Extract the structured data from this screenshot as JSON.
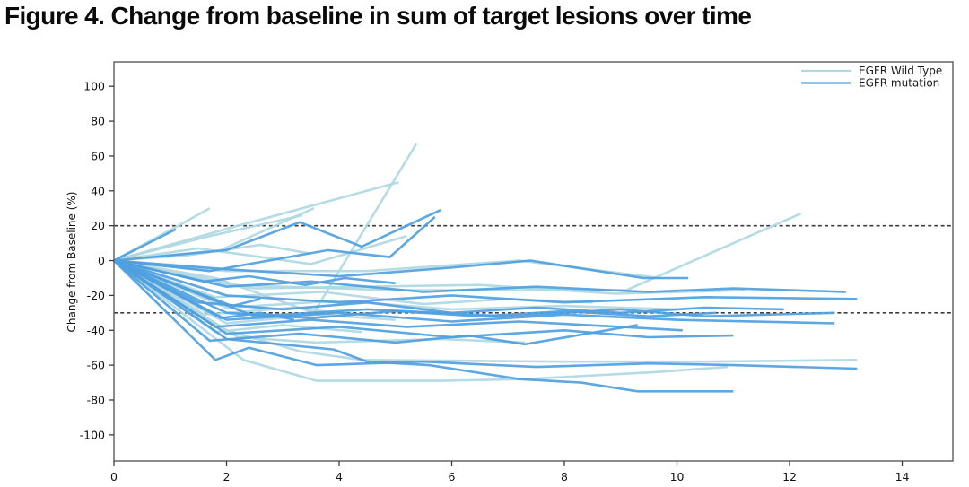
{
  "title": "Figure 4. Change from baseline in sum of target lesions over time",
  "colors": {
    "wild_type": "#afd8e3",
    "mutation": "#4f9fe0",
    "axis_box": "#5a5a5a",
    "tick": "#3c3c3c",
    "tick_label": "#111111",
    "reference_line": "#3d3d3d",
    "background": "#ffffff"
  },
  "chart_data": {
    "type": "line",
    "title": "Figure 4. Change from baseline in sum of target lesions over time",
    "xlabel": "",
    "ylabel": "Change from Baseline (%)",
    "x_ticks": [
      0,
      2,
      4,
      6,
      8,
      10,
      12,
      14
    ],
    "y_ticks": [
      -100,
      -80,
      -60,
      -40,
      -20,
      0,
      20,
      40,
      60,
      80,
      100
    ],
    "xlim": [
      0,
      14.9
    ],
    "ylim": [
      -115,
      114
    ],
    "grid": false,
    "reference_lines": [
      {
        "y": 20,
        "style": "dashed"
      },
      {
        "y": -30,
        "style": "dashed"
      }
    ],
    "legend": {
      "position": "top-right",
      "entries": [
        {
          "label": "EGFR Wild Type",
          "group": "wild",
          "color": "#afd8e3"
        },
        {
          "label": "EGFR mutation",
          "group": "mutation",
          "color": "#4f9fe0"
        }
      ]
    },
    "groups": {
      "wild": "#afd8e3",
      "mutation": "#4f9fe0"
    },
    "series": [
      {
        "name": "wt-01",
        "group": "wild",
        "points": [
          [
            0,
            0
          ],
          [
            1.2,
            21
          ],
          [
            1.7,
            30
          ]
        ]
      },
      {
        "name": "wt-02",
        "group": "wild",
        "points": [
          [
            0,
            0
          ],
          [
            1.7,
            14
          ],
          [
            3.35,
            26
          ]
        ]
      },
      {
        "name": "wt-03",
        "group": "wild",
        "points": [
          [
            0,
            0
          ],
          [
            1.9,
            6
          ],
          [
            3.55,
            30
          ]
        ]
      },
      {
        "name": "wt-04",
        "group": "wild",
        "points": [
          [
            0,
            0
          ],
          [
            2.2,
            20
          ],
          [
            5.06,
            45
          ]
        ]
      },
      {
        "name": "wt-05",
        "group": "wild",
        "points": [
          [
            0,
            0
          ],
          [
            1.8,
            -10
          ],
          [
            3.55,
            -30
          ],
          [
            5.37,
            67
          ]
        ]
      },
      {
        "name": "wt-06",
        "group": "wild",
        "points": [
          [
            0,
            0
          ],
          [
            1.5,
            7
          ],
          [
            3.5,
            -2
          ],
          [
            5.2,
            14
          ]
        ]
      },
      {
        "name": "wt-07",
        "group": "wild",
        "points": [
          [
            0,
            0
          ],
          [
            2,
            -6
          ],
          [
            4.5,
            -6
          ],
          [
            7.2,
            0
          ],
          [
            9.7,
            -10
          ]
        ]
      },
      {
        "name": "wt-08",
        "group": "wild",
        "points": [
          [
            0,
            0
          ],
          [
            2,
            -14
          ],
          [
            5,
            -17
          ],
          [
            9.1,
            -17
          ],
          [
            12.2,
            27
          ]
        ]
      },
      {
        "name": "wt-09",
        "group": "wild",
        "points": [
          [
            0,
            0
          ],
          [
            2.5,
            -16
          ],
          [
            6.5,
            -14
          ],
          [
            8.9,
            -19
          ],
          [
            11.2,
            -17
          ]
        ]
      },
      {
        "name": "wt-10",
        "group": "wild",
        "points": [
          [
            0,
            0
          ],
          [
            1.8,
            -21
          ],
          [
            3.7,
            -18
          ],
          [
            5.5,
            -25
          ],
          [
            7,
            -22
          ],
          [
            8.5,
            -24
          ]
        ]
      },
      {
        "name": "wt-11",
        "group": "wild",
        "points": [
          [
            0,
            0
          ],
          [
            2,
            -27
          ],
          [
            4,
            -23
          ],
          [
            6,
            -28
          ],
          [
            8,
            -26
          ],
          [
            10,
            -28
          ]
        ]
      },
      {
        "name": "wt-12",
        "group": "wild",
        "points": [
          [
            0,
            0
          ],
          [
            1.6,
            -31
          ],
          [
            3.2,
            -27
          ],
          [
            4.2,
            -31
          ]
        ]
      },
      {
        "name": "wt-13",
        "group": "wild",
        "points": [
          [
            0,
            0
          ],
          [
            2,
            -36
          ],
          [
            3.6,
            -31
          ],
          [
            5,
            -34
          ]
        ]
      },
      {
        "name": "wt-14",
        "group": "wild",
        "points": [
          [
            0,
            0
          ],
          [
            1.8,
            -41
          ],
          [
            3,
            -37
          ],
          [
            4.4,
            -41
          ]
        ]
      },
      {
        "name": "wt-15",
        "group": "wild",
        "points": [
          [
            0,
            0
          ],
          [
            2.2,
            -44
          ],
          [
            3.6,
            -47
          ],
          [
            5.8,
            -45
          ],
          [
            7.3,
            -47
          ]
        ]
      },
      {
        "name": "wt-16",
        "group": "wild",
        "points": [
          [
            0,
            0
          ],
          [
            2,
            -40
          ],
          [
            3.3,
            -52
          ],
          [
            4.4,
            -57
          ],
          [
            8,
            -58
          ],
          [
            10.5,
            -58
          ],
          [
            13.2,
            -57
          ]
        ]
      },
      {
        "name": "wt-17",
        "group": "wild",
        "points": [
          [
            0,
            0
          ],
          [
            2.3,
            -57
          ],
          [
            3.6,
            -69
          ],
          [
            5.8,
            -69
          ],
          [
            7.3,
            -68
          ],
          [
            9.6,
            -64
          ],
          [
            10.9,
            -61
          ]
        ]
      },
      {
        "name": "wt-18",
        "group": "wild",
        "points": [
          [
            0,
            0
          ],
          [
            1.3,
            3
          ],
          [
            2.6,
            9
          ],
          [
            3.5,
            4
          ]
        ]
      },
      {
        "name": "mut-01",
        "group": "mutation",
        "points": [
          [
            0,
            0
          ],
          [
            1.1,
            18
          ]
        ]
      },
      {
        "name": "mut-02",
        "group": "mutation",
        "points": [
          [
            0,
            0
          ],
          [
            2,
            6
          ],
          [
            3.3,
            22
          ],
          [
            4.4,
            8
          ],
          [
            5.8,
            29
          ]
        ]
      },
      {
        "name": "mut-03",
        "group": "mutation",
        "points": [
          [
            0,
            0
          ],
          [
            1.7,
            -6
          ],
          [
            3.8,
            6
          ],
          [
            4.9,
            2
          ],
          [
            5.7,
            25
          ]
        ]
      },
      {
        "name": "mut-04",
        "group": "mutation",
        "points": [
          [
            0,
            0
          ],
          [
            2,
            -5
          ],
          [
            4,
            -9
          ],
          [
            6,
            -4
          ],
          [
            7.4,
            0
          ],
          [
            9.4,
            -10
          ],
          [
            10.2,
            -10
          ]
        ]
      },
      {
        "name": "mut-05",
        "group": "mutation",
        "points": [
          [
            0,
            0
          ],
          [
            1.6,
            -12
          ],
          [
            2.4,
            -9
          ],
          [
            3.4,
            -14
          ],
          [
            4.1,
            -10
          ],
          [
            5,
            -13
          ]
        ]
      },
      {
        "name": "mut-06",
        "group": "mutation",
        "points": [
          [
            0,
            0
          ],
          [
            2,
            -15
          ],
          [
            3.5,
            -12
          ],
          [
            5.5,
            -18
          ],
          [
            7.5,
            -15
          ],
          [
            9.5,
            -18
          ],
          [
            11,
            -16
          ],
          [
            13,
            -18
          ]
        ]
      },
      {
        "name": "mut-07",
        "group": "mutation",
        "points": [
          [
            0,
            0
          ],
          [
            2,
            -20
          ],
          [
            4,
            -24
          ],
          [
            6,
            -20
          ],
          [
            8,
            -24
          ],
          [
            10.5,
            -21
          ],
          [
            13.2,
            -22
          ]
        ]
      },
      {
        "name": "mut-08",
        "group": "mutation",
        "points": [
          [
            0,
            0
          ],
          [
            1.5,
            -24
          ],
          [
            3,
            -28
          ],
          [
            4.5,
            -24
          ],
          [
            6,
            -30
          ],
          [
            7.5,
            -27
          ],
          [
            9,
            -30
          ],
          [
            10.5,
            -27
          ],
          [
            11.9,
            -28
          ]
        ]
      },
      {
        "name": "mut-09",
        "group": "mutation",
        "points": [
          [
            0,
            0
          ],
          [
            2,
            -30
          ],
          [
            3.5,
            -33
          ],
          [
            5,
            -29
          ],
          [
            6.5,
            -32
          ],
          [
            8,
            -29
          ],
          [
            9.5,
            -32
          ],
          [
            10.7,
            -30
          ]
        ]
      },
      {
        "name": "mut-10",
        "group": "mutation",
        "points": [
          [
            0,
            0
          ],
          [
            2.5,
            -32
          ],
          [
            4.5,
            -28
          ],
          [
            7,
            -32
          ],
          [
            9,
            -28
          ],
          [
            10.5,
            -32
          ],
          [
            12.8,
            -30
          ]
        ]
      },
      {
        "name": "mut-11",
        "group": "mutation",
        "points": [
          [
            0,
            0
          ],
          [
            2,
            -34
          ],
          [
            4,
            -30
          ],
          [
            6,
            -35
          ],
          [
            8,
            -31
          ],
          [
            10,
            -34
          ],
          [
            12.8,
            -36
          ]
        ]
      },
      {
        "name": "mut-12",
        "group": "mutation",
        "points": [
          [
            0,
            0
          ],
          [
            1.8,
            -38
          ],
          [
            3.5,
            -34
          ],
          [
            5.2,
            -38
          ],
          [
            7.2,
            -35
          ],
          [
            9,
            -38
          ],
          [
            10.1,
            -40
          ]
        ]
      },
      {
        "name": "mut-13",
        "group": "mutation",
        "points": [
          [
            0,
            0
          ],
          [
            2,
            -42
          ],
          [
            4,
            -38
          ],
          [
            6,
            -44
          ],
          [
            8,
            -40
          ],
          [
            9.5,
            -44
          ],
          [
            11,
            -43
          ]
        ]
      },
      {
        "name": "mut-14",
        "group": "mutation",
        "points": [
          [
            0,
            0
          ],
          [
            1.7,
            -46
          ],
          [
            3.3,
            -42
          ],
          [
            5,
            -47
          ],
          [
            6.3,
            -43
          ],
          [
            7.3,
            -48
          ],
          [
            9.3,
            -37
          ]
        ]
      },
      {
        "name": "mut-15",
        "group": "mutation",
        "points": [
          [
            0,
            0
          ],
          [
            1.8,
            -57
          ],
          [
            2.4,
            -50
          ],
          [
            3.6,
            -60
          ],
          [
            5.5,
            -58
          ],
          [
            7.5,
            -61
          ],
          [
            9.5,
            -59
          ],
          [
            11,
            -60
          ],
          [
            13.2,
            -62
          ]
        ]
      },
      {
        "name": "mut-16",
        "group": "mutation",
        "points": [
          [
            0,
            0
          ],
          [
            2,
            -45
          ],
          [
            3.9,
            -51
          ],
          [
            4.5,
            -58
          ],
          [
            5.6,
            -60
          ],
          [
            7.2,
            -68
          ],
          [
            8.3,
            -70
          ],
          [
            9.3,
            -75
          ],
          [
            11,
            -75
          ]
        ]
      },
      {
        "name": "mut-17",
        "group": "mutation",
        "points": [
          [
            0,
            0
          ],
          [
            2.1,
            -26
          ],
          [
            2.6,
            -22
          ]
        ]
      },
      {
        "name": "mut-18",
        "group": "mutation",
        "points": [
          [
            0,
            0
          ],
          [
            1.9,
            -33
          ],
          [
            2.6,
            -30
          ],
          [
            3.2,
            -34
          ]
        ]
      }
    ]
  }
}
